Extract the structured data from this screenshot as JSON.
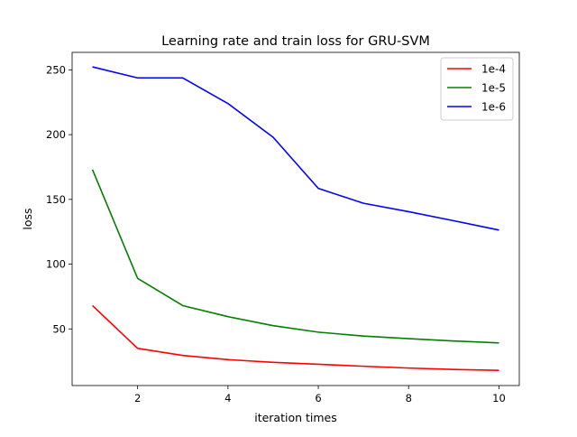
{
  "chart_data": {
    "type": "line",
    "title": "Learning rate and train loss for GRU-SVM",
    "xlabel": "iteration times",
    "ylabel": "loss",
    "xlim": [
      0.55,
      10.45
    ],
    "ylim": [
      6.3,
      263.5
    ],
    "x_ticks": [
      2,
      4,
      6,
      8,
      10
    ],
    "y_ticks": [
      50,
      100,
      150,
      200,
      250
    ],
    "grid": false,
    "legend_position": "top-right",
    "x": [
      1,
      2,
      3,
      4,
      5,
      6,
      7,
      8,
      9,
      10
    ],
    "series": [
      {
        "name": "1e-4",
        "color": "#ff0000",
        "values": [
          68,
          35,
          29.5,
          26.3,
          24.2,
          22.7,
          21.2,
          19.8,
          18.7,
          18
        ]
      },
      {
        "name": "1e-5",
        "color": "#008000",
        "values": [
          173,
          89,
          68,
          59.5,
          52.5,
          47.5,
          44.5,
          42.5,
          40.7,
          39.2
        ]
      },
      {
        "name": "1e-6",
        "color": "#0000ff",
        "values": [
          252.3,
          243.8,
          243.8,
          224,
          198,
          158.5,
          147,
          140.5,
          133.5,
          126.3
        ]
      }
    ]
  }
}
